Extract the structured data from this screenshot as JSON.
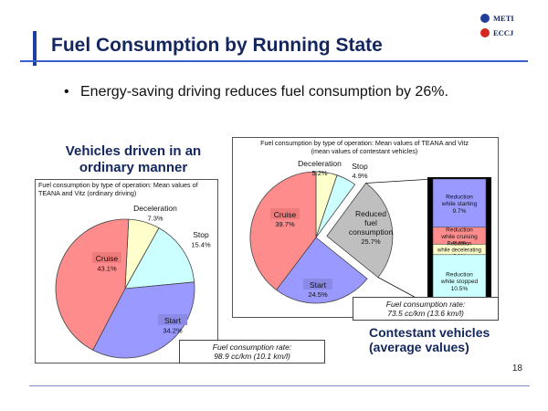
{
  "header": {
    "title": "Fuel Consumption by Running State",
    "logo_lines": [
      "METI",
      "ECCJ"
    ]
  },
  "bullet": "Energy-saving driving reduces fuel consumption by 26%.",
  "page_number": "18",
  "colors": {
    "cruise": "#ff8c8c",
    "start": "#9999ff",
    "stop": "#ccffff",
    "deceleration": "#ffffcc",
    "reduced": "#bfbfbf",
    "title": "#13265e"
  },
  "chart_data": [
    {
      "type": "pie",
      "caption": "Vehicles driven in an ordinary manner",
      "title": "Fuel consumption by type of operation: Mean values of TEANA and Vitz (ordinary driving)",
      "footnote": [
        "Fuel consumption rate:",
        "98.9 cc/km (10.1 km/l)"
      ],
      "slices": [
        {
          "name": "Deceleration",
          "value": 7.3,
          "label": "7.3%"
        },
        {
          "name": "Stop",
          "value": 15.4,
          "label": "15.4%"
        },
        {
          "name": "Start",
          "value": 34.2,
          "label": "34.2%"
        },
        {
          "name": "Cruise",
          "value": 43.1,
          "label": "43.1%"
        }
      ]
    },
    {
      "type": "pie",
      "caption": "Contestant vehicles (average values)",
      "title": "Fuel consumption by type of operation: Mean values of TEANA and Vitz",
      "subtitle": "(mean values of contestant vehicles)",
      "footnote": [
        "Fuel consumption rate:",
        "73.5 cc/km (13.6 km/l)"
      ],
      "slices": [
        {
          "name": "Deceleration",
          "value": 5.2,
          "label": "5.2%"
        },
        {
          "name": "Stop",
          "value": 4.9,
          "label": "4.9%"
        },
        {
          "name": "Reduced fuel consumption",
          "value": 25.7,
          "label": "25.7%",
          "exploded": true
        },
        {
          "name": "Start",
          "value": 24.5,
          "label": "24.5%"
        },
        {
          "name": "Cruise",
          "value": 39.7,
          "label": "39.7%"
        }
      ],
      "breakdown": [
        {
          "name": "Reduction while starting",
          "value": 9.7,
          "label": "9.7%"
        },
        {
          "name": "Reduction while cruising",
          "value": 3.4,
          "label": "3.4%"
        },
        {
          "name": "Reduction while decelerating",
          "value": 2.1,
          "label": "2.1%"
        },
        {
          "name": "Reduction while stopped",
          "value": 10.5,
          "label": "10.5%"
        }
      ]
    }
  ]
}
